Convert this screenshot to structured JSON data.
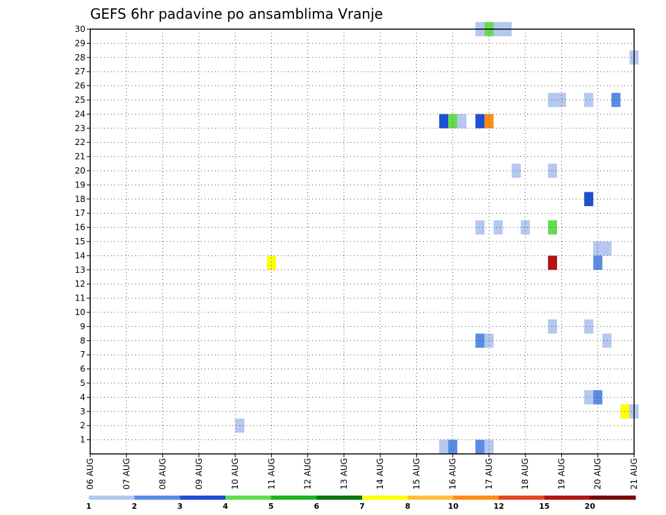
{
  "chart_data": {
    "type": "heatmap",
    "title": "GEFS 6hr padavine po ansamblima Vranje",
    "xlabel": "",
    "ylabel": "",
    "x_tick_labels": [
      "06 AUG",
      "07 AUG",
      "08 AUG",
      "09 AUG",
      "10 AUG",
      "11 AUG",
      "12 AUG",
      "13 AUG",
      "14 AUG",
      "15 AUG",
      "16 AUG",
      "17 AUG",
      "18 AUG",
      "19 AUG",
      "20 AUG",
      "21 AUG"
    ],
    "y_tick_labels": [
      "1",
      "2",
      "3",
      "4",
      "5",
      "6",
      "7",
      "8",
      "9",
      "10",
      "11",
      "12",
      "13",
      "14",
      "15",
      "16",
      "17",
      "18",
      "19",
      "20",
      "21",
      "22",
      "23",
      "24",
      "25",
      "26",
      "27",
      "28",
      "29",
      "30"
    ],
    "x_range_days": [
      0,
      15
    ],
    "y_range": [
      0,
      30
    ],
    "grid": true,
    "step_hours": 6,
    "colorbar": {
      "labels": [
        "1",
        "2",
        "3",
        "4",
        "5",
        "6",
        "7",
        "8",
        "10",
        "12",
        "15",
        "20"
      ],
      "colors": [
        "#b4c8f0",
        "#5a8ce6",
        "#1e50d2",
        "#64dc50",
        "#1eb41e",
        "#0a780a",
        "#ffff00",
        "#ffbe3c",
        "#ff8c14",
        "#e6461e",
        "#b41414",
        "#780a0a"
      ]
    },
    "cells": [
      {
        "day": 4.125,
        "member": 2,
        "level": 0
      },
      {
        "day": 5.0,
        "member": 13.5,
        "level": 6
      },
      {
        "day": 9.75,
        "member": 23.5,
        "level": 2
      },
      {
        "day": 10.0,
        "member": 23.5,
        "level": 3
      },
      {
        "day": 10.25,
        "member": 23.5,
        "level": 0
      },
      {
        "day": 10.75,
        "member": 23.5,
        "level": 2
      },
      {
        "day": 11.0,
        "member": 23.5,
        "level": 8
      },
      {
        "day": 9.75,
        "member": 0.5,
        "level": 0
      },
      {
        "day": 10.0,
        "member": 0.5,
        "level": 1
      },
      {
        "day": 10.75,
        "member": 0.5,
        "level": 1
      },
      {
        "day": 11.0,
        "member": 0.5,
        "level": 0
      },
      {
        "day": 10.75,
        "member": 30,
        "level": 0
      },
      {
        "day": 11.0,
        "member": 30,
        "level": 3
      },
      {
        "day": 11.25,
        "member": 30,
        "level": 0
      },
      {
        "day": 11.5,
        "member": 30,
        "level": 0
      },
      {
        "day": 15.0,
        "member": 28,
        "level": 0
      },
      {
        "day": 12.75,
        "member": 25,
        "level": 0
      },
      {
        "day": 13.0,
        "member": 25,
        "level": 0
      },
      {
        "day": 13.75,
        "member": 25,
        "level": 0
      },
      {
        "day": 14.5,
        "member": 25,
        "level": 1
      },
      {
        "day": 11.75,
        "member": 20,
        "level": 0
      },
      {
        "day": 12.75,
        "member": 20,
        "level": 0
      },
      {
        "day": 13.75,
        "member": 18,
        "level": 2
      },
      {
        "day": 10.75,
        "member": 16,
        "level": 0
      },
      {
        "day": 11.25,
        "member": 16,
        "level": 0
      },
      {
        "day": 12.0,
        "member": 16,
        "level": 0
      },
      {
        "day": 12.75,
        "member": 16,
        "level": 3
      },
      {
        "day": 14.0,
        "member": 14.5,
        "level": 0
      },
      {
        "day": 14.25,
        "member": 14.5,
        "level": 0
      },
      {
        "day": 12.75,
        "member": 13.5,
        "level": 10
      },
      {
        "day": 14.0,
        "member": 13.5,
        "level": 1
      },
      {
        "day": 12.75,
        "member": 9,
        "level": 0
      },
      {
        "day": 13.75,
        "member": 9,
        "level": 0
      },
      {
        "day": 10.75,
        "member": 8,
        "level": 1
      },
      {
        "day": 11.0,
        "member": 8,
        "level": 0
      },
      {
        "day": 14.25,
        "member": 8,
        "level": 0
      },
      {
        "day": 13.75,
        "member": 4,
        "level": 0
      },
      {
        "day": 14.0,
        "member": 4,
        "level": 1
      },
      {
        "day": 14.75,
        "member": 3,
        "level": 6
      },
      {
        "day": 15.0,
        "member": 3,
        "level": 0
      }
    ]
  }
}
